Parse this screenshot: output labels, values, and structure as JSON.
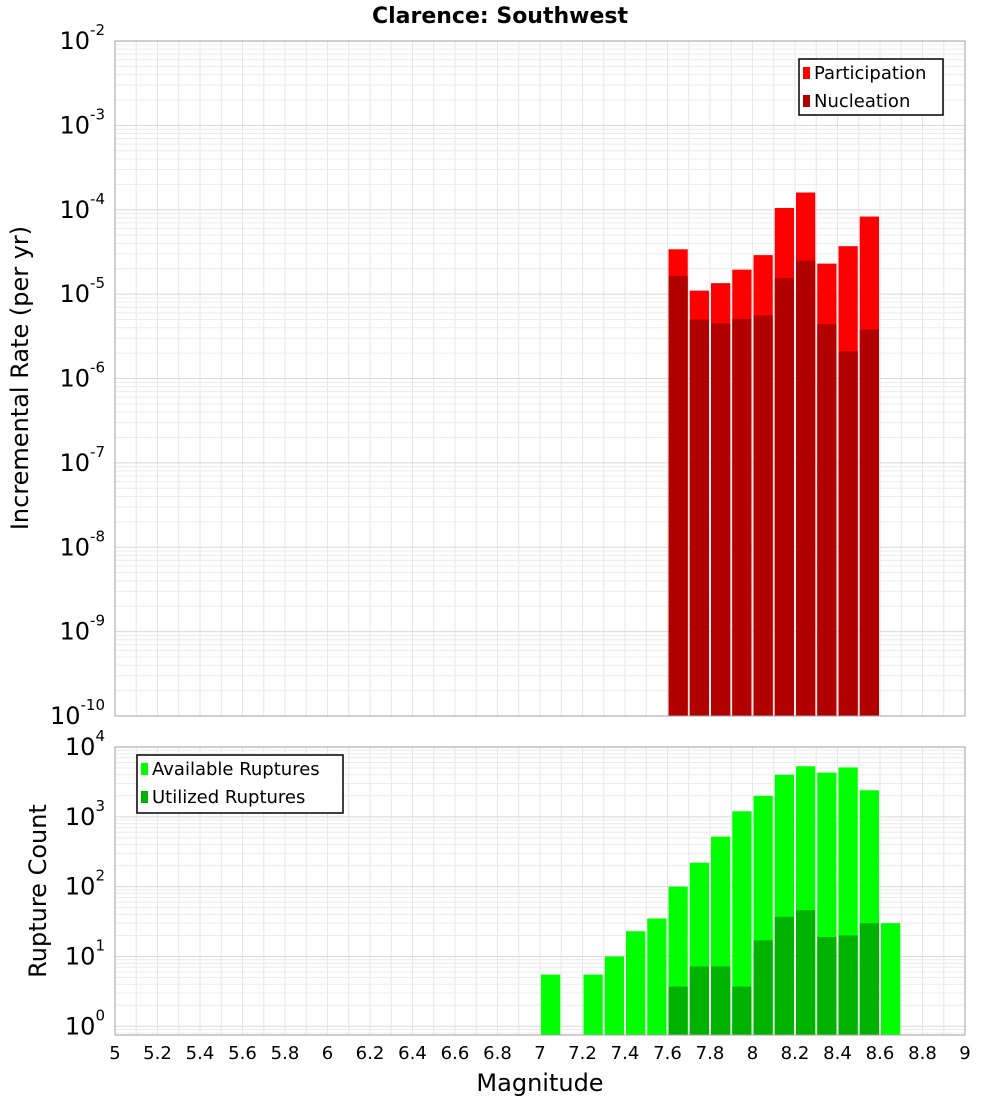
{
  "chart_data": [
    {
      "type": "bar",
      "title": "Clarence: Southwest",
      "xlabel": "",
      "ylabel": "Incremental Rate (per yr)",
      "yscale": "log",
      "xlim": [
        5,
        9
      ],
      "ylim": [
        1e-10,
        0.01
      ],
      "y_ticks": [
        {
          "base": "10",
          "exp": "-10",
          "value": 1e-10
        },
        {
          "base": "10",
          "exp": "-9",
          "value": 1e-09
        },
        {
          "base": "10",
          "exp": "-8",
          "value": 1e-08
        },
        {
          "base": "10",
          "exp": "-7",
          "value": 1e-07
        },
        {
          "base": "10",
          "exp": "-6",
          "value": 1e-06
        },
        {
          "base": "10",
          "exp": "-5",
          "value": 1e-05
        },
        {
          "base": "10",
          "exp": "-4",
          "value": 0.0001
        },
        {
          "base": "10",
          "exp": "-3",
          "value": 0.001
        },
        {
          "base": "10",
          "exp": "-2",
          "value": 0.01
        }
      ],
      "grid": true,
      "legend_position": "top-right",
      "x": [
        7.65,
        7.75,
        7.85,
        7.95,
        8.05,
        8.15,
        8.25,
        8.35,
        8.45,
        8.55
      ],
      "series": [
        {
          "name": "Participation",
          "color": "#ff0000",
          "values": [
            3.4e-05,
            1.1e-05,
            1.35e-05,
            1.95e-05,
            2.9e-05,
            0.000105,
            0.00016,
            2.3e-05,
            3.7e-05,
            8.3e-05
          ]
        },
        {
          "name": "Nucleation",
          "color": "#b20000",
          "values": [
            1.65e-05,
            5e-06,
            4.5e-06,
            5.1e-06,
            5.6e-06,
            1.55e-05,
            2.5e-05,
            4.4e-06,
            2.1e-06,
            3.8e-06
          ]
        }
      ]
    },
    {
      "type": "bar",
      "title": "",
      "xlabel": "Magnitude",
      "ylabel": "Rupture Count",
      "yscale": "log",
      "xlim": [
        5,
        9
      ],
      "ylim": [
        0.75,
        10000
      ],
      "y_ticks": [
        {
          "base": "10",
          "exp": "0",
          "value": 1
        },
        {
          "base": "10",
          "exp": "1",
          "value": 10
        },
        {
          "base": "10",
          "exp": "2",
          "value": 100
        },
        {
          "base": "10",
          "exp": "3",
          "value": 1000
        },
        {
          "base": "10",
          "exp": "4",
          "value": 10000
        }
      ],
      "x_ticks": [
        "5",
        "5.2",
        "5.4",
        "5.6",
        "5.8",
        "6",
        "6.2",
        "6.4",
        "6.6",
        "6.8",
        "7",
        "7.2",
        "7.4",
        "7.6",
        "7.8",
        "8",
        "8.2",
        "8.4",
        "8.6",
        "8.8",
        "9"
      ],
      "grid": true,
      "legend_position": "top-left",
      "series": [
        {
          "name": "Available Ruptures",
          "color": "#00ff00",
          "x": [
            7.05,
            7.25,
            7.35,
            7.45,
            7.55,
            7.65,
            7.75,
            7.85,
            7.95,
            8.05,
            8.15,
            8.25,
            8.35,
            8.45,
            8.55,
            8.65
          ],
          "values": [
            5.5,
            5.5,
            10,
            23,
            35,
            100,
            220,
            520,
            1200,
            2000,
            4000,
            5300,
            4300,
            5100,
            2400,
            30
          ]
        },
        {
          "name": "Utilized Ruptures",
          "color": "#00b200",
          "x": [
            7.65,
            7.75,
            7.85,
            7.95,
            8.05,
            8.15,
            8.25,
            8.35,
            8.45,
            8.55
          ],
          "values": [
            3.7,
            7.2,
            7.2,
            3.7,
            17,
            37,
            46,
            19,
            20,
            30
          ]
        }
      ]
    }
  ]
}
